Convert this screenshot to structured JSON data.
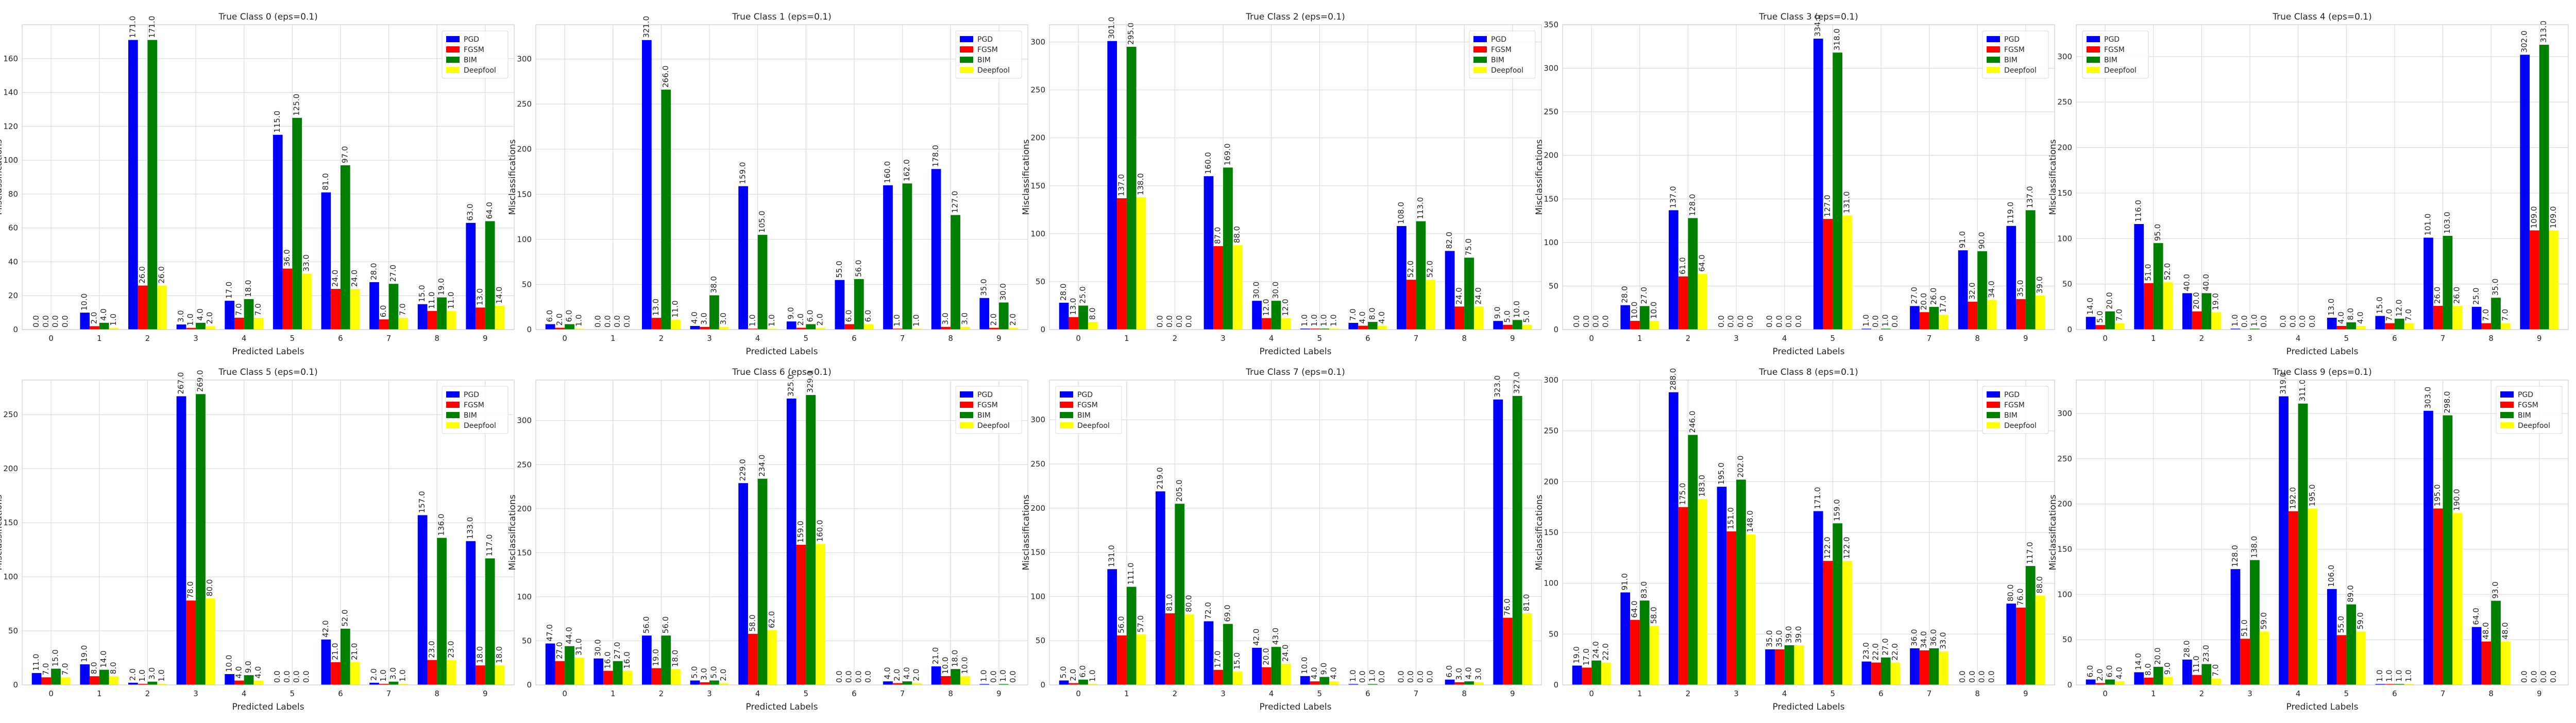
{
  "figure": {
    "legend_names": [
      "PGD",
      "FGSM",
      "BIM",
      "Deepfool"
    ],
    "series_colors": [
      "#0000ff",
      "#ff0000",
      "#008000",
      "#ffff00"
    ],
    "grid": true
  },
  "chart_data": [
    {
      "type": "bar",
      "title": "True Class 0 (eps=0.1)",
      "xlabel": "Predicted Labels",
      "ylabel": "Misclassifications",
      "categories": [
        "0",
        "1",
        "2",
        "3",
        "4",
        "5",
        "6",
        "7",
        "8",
        "9"
      ],
      "ylim": [
        0,
        180
      ],
      "yticks": [
        0,
        20,
        40,
        60,
        80,
        100,
        120,
        140,
        160
      ],
      "legend": "top-right",
      "series": [
        {
          "name": "PGD",
          "values": [
            0,
            10,
            171,
            3,
            17,
            115,
            81,
            28,
            15,
            63
          ]
        },
        {
          "name": "FGSM",
          "values": [
            0,
            2,
            26,
            1,
            7,
            36,
            24,
            6,
            11,
            13
          ]
        },
        {
          "name": "BIM",
          "values": [
            0,
            4,
            171,
            4,
            18,
            125,
            97,
            27,
            19,
            64
          ]
        },
        {
          "name": "Deepfool",
          "values": [
            0,
            1,
            26,
            2,
            7,
            33,
            24,
            7,
            11,
            14
          ]
        }
      ]
    },
    {
      "type": "bar",
      "title": "True Class 1 (eps=0.1)",
      "xlabel": "Predicted Labels",
      "ylabel": "Misclassifications",
      "categories": [
        "0",
        "1",
        "2",
        "3",
        "4",
        "5",
        "6",
        "7",
        "8",
        "9"
      ],
      "ylim": [
        0,
        338
      ],
      "yticks": [
        0,
        50,
        100,
        150,
        200,
        250,
        300
      ],
      "legend": "top-right",
      "series": [
        {
          "name": "PGD",
          "values": [
            6,
            0,
            321,
            4,
            159,
            9,
            55,
            160,
            178,
            35
          ]
        },
        {
          "name": "FGSM",
          "values": [
            2,
            0,
            13,
            3,
            1,
            2,
            6,
            1,
            3,
            2
          ]
        },
        {
          "name": "BIM",
          "values": [
            6,
            0,
            266,
            38,
            105,
            6,
            56,
            162,
            127,
            30
          ]
        },
        {
          "name": "Deepfool",
          "values": [
            1,
            0,
            11,
            3,
            1,
            2,
            6,
            1,
            3,
            2
          ]
        }
      ]
    },
    {
      "type": "bar",
      "title": "True Class 2 (eps=0.1)",
      "xlabel": "Predicted Labels",
      "ylabel": "Misclassifications",
      "categories": [
        "0",
        "1",
        "2",
        "3",
        "4",
        "5",
        "6",
        "7",
        "8",
        "9"
      ],
      "ylim": [
        0,
        318
      ],
      "yticks": [
        0,
        50,
        100,
        150,
        200,
        250,
        300
      ],
      "legend": "top-right",
      "series": [
        {
          "name": "PGD",
          "values": [
            28,
            301,
            0,
            160,
            30,
            1,
            7,
            108,
            82,
            9
          ]
        },
        {
          "name": "FGSM",
          "values": [
            13,
            137,
            0,
            87,
            12,
            1,
            4,
            52,
            24,
            5
          ]
        },
        {
          "name": "BIM",
          "values": [
            25,
            295,
            0,
            169,
            30,
            1,
            8,
            113,
            75,
            10
          ]
        },
        {
          "name": "Deepfool",
          "values": [
            8,
            138,
            0,
            88,
            12,
            1,
            4,
            52,
            24,
            5
          ]
        }
      ]
    },
    {
      "type": "bar",
      "title": "True Class 3 (eps=0.1)",
      "xlabel": "Predicted Labels",
      "ylabel": "Misclassifications",
      "categories": [
        "0",
        "1",
        "2",
        "3",
        "4",
        "5",
        "6",
        "7",
        "8",
        "9"
      ],
      "ylim": [
        0,
        350
      ],
      "yticks": [
        0,
        50,
        100,
        150,
        200,
        250,
        300,
        350
      ],
      "legend": "top-right",
      "series": [
        {
          "name": "PGD",
          "values": [
            0,
            28,
            137,
            0,
            0,
            334,
            1,
            27,
            91,
            119
          ]
        },
        {
          "name": "FGSM",
          "values": [
            0,
            10,
            61,
            0,
            0,
            127,
            0,
            20,
            32,
            35
          ]
        },
        {
          "name": "BIM",
          "values": [
            0,
            27,
            128,
            0,
            0,
            318,
            1,
            26,
            90,
            137
          ]
        },
        {
          "name": "Deepfool",
          "values": [
            0,
            10,
            64,
            0,
            0,
            131,
            0,
            17,
            34,
            39
          ]
        }
      ]
    },
    {
      "type": "bar",
      "title": "True Class 4 (eps=0.1)",
      "xlabel": "Predicted Labels",
      "ylabel": "Misclassifications",
      "categories": [
        "0",
        "1",
        "2",
        "3",
        "4",
        "5",
        "6",
        "7",
        "8",
        "9"
      ],
      "ylim": [
        0,
        335
      ],
      "yticks": [
        0,
        50,
        100,
        150,
        200,
        250,
        300
      ],
      "legend": "top-left",
      "series": [
        {
          "name": "PGD",
          "values": [
            14,
            116,
            40,
            1,
            0,
            13,
            15,
            101,
            25,
            302
          ]
        },
        {
          "name": "FGSM",
          "values": [
            5,
            51,
            20,
            0,
            0,
            4,
            7,
            26,
            7,
            109
          ]
        },
        {
          "name": "BIM",
          "values": [
            20,
            95,
            40,
            1,
            0,
            8,
            12,
            103,
            35,
            313
          ]
        },
        {
          "name": "Deepfool",
          "values": [
            7,
            52,
            19,
            0,
            0,
            4,
            7,
            26,
            7,
            109
          ]
        }
      ]
    },
    {
      "type": "bar",
      "title": "True Class 5 (eps=0.1)",
      "xlabel": "Predicted Labels",
      "ylabel": "Misclassifications",
      "categories": [
        "0",
        "1",
        "2",
        "3",
        "4",
        "5",
        "6",
        "7",
        "8",
        "9"
      ],
      "ylim": [
        0,
        282
      ],
      "yticks": [
        0,
        50,
        100,
        150,
        200,
        250
      ],
      "legend": "top-right",
      "series": [
        {
          "name": "PGD",
          "values": [
            11,
            19,
            2,
            267,
            10,
            0,
            42,
            2,
            157,
            133
          ]
        },
        {
          "name": "FGSM",
          "values": [
            7,
            8,
            1,
            78,
            4,
            0,
            21,
            1,
            23,
            18
          ]
        },
        {
          "name": "BIM",
          "values": [
            15,
            14,
            3,
            269,
            9,
            0,
            52,
            3,
            136,
            117
          ]
        },
        {
          "name": "Deepfool",
          "values": [
            7,
            8,
            1,
            80,
            4,
            0,
            21,
            1,
            23,
            18
          ]
        }
      ]
    },
    {
      "type": "bar",
      "title": "True Class 6 (eps=0.1)",
      "xlabel": "Predicted Labels",
      "ylabel": "Misclassifications",
      "categories": [
        "0",
        "1",
        "2",
        "3",
        "4",
        "5",
        "6",
        "7",
        "8",
        "9"
      ],
      "ylim": [
        0,
        346
      ],
      "yticks": [
        0,
        50,
        100,
        150,
        200,
        250,
        300
      ],
      "legend": "top-right",
      "series": [
        {
          "name": "PGD",
          "values": [
            47,
            30,
            56,
            5,
            229,
            325,
            0,
            4,
            21,
            1
          ]
        },
        {
          "name": "FGSM",
          "values": [
            27,
            16,
            19,
            3,
            58,
            159,
            0,
            2,
            10,
            0
          ]
        },
        {
          "name": "BIM",
          "values": [
            44,
            27,
            56,
            5,
            234,
            329,
            0,
            4,
            18,
            1
          ]
        },
        {
          "name": "Deepfool",
          "values": [
            31,
            16,
            18,
            2,
            62,
            160,
            0,
            2,
            10,
            0
          ]
        }
      ]
    },
    {
      "type": "bar",
      "title": "True Class 7 (eps=0.1)",
      "xlabel": "Predicted Labels",
      "ylabel": "Misclassifications",
      "categories": [
        "0",
        "1",
        "2",
        "3",
        "4",
        "5",
        "6",
        "7",
        "8",
        "9"
      ],
      "ylim": [
        0,
        345
      ],
      "yticks": [
        0,
        50,
        100,
        150,
        200,
        250,
        300
      ],
      "legend": "top-left",
      "series": [
        {
          "name": "PGD",
          "values": [
            5,
            131,
            219,
            72,
            42,
            10,
            1,
            0,
            6,
            323
          ]
        },
        {
          "name": "FGSM",
          "values": [
            2,
            56,
            81,
            17,
            20,
            4,
            0,
            0,
            3,
            76
          ]
        },
        {
          "name": "BIM",
          "values": [
            6,
            111,
            205,
            69,
            43,
            9,
            1,
            0,
            4,
            327
          ]
        },
        {
          "name": "Deepfool",
          "values": [
            1,
            57,
            80,
            15,
            24,
            4,
            0,
            0,
            3,
            81
          ]
        }
      ]
    },
    {
      "type": "bar",
      "title": "True Class 8 (eps=0.1)",
      "xlabel": "Predicted Labels",
      "ylabel": "Misclassifications",
      "categories": [
        "0",
        "1",
        "2",
        "3",
        "4",
        "5",
        "6",
        "7",
        "8",
        "9"
      ],
      "ylim": [
        0,
        300
      ],
      "yticks": [
        0,
        50,
        100,
        150,
        200,
        250,
        300
      ],
      "legend": "top-right",
      "series": [
        {
          "name": "PGD",
          "values": [
            19,
            91,
            288,
            195,
            35,
            171,
            23,
            36,
            0,
            80
          ]
        },
        {
          "name": "FGSM",
          "values": [
            17,
            64,
            175,
            151,
            35,
            122,
            22,
            34,
            0,
            76
          ]
        },
        {
          "name": "BIM",
          "values": [
            24,
            83,
            246,
            202,
            39,
            159,
            27,
            36,
            0,
            117
          ]
        },
        {
          "name": "Deepfool",
          "values": [
            22,
            58,
            183,
            148,
            39,
            122,
            22,
            33,
            0,
            88
          ]
        }
      ]
    },
    {
      "type": "bar",
      "title": "True Class 9 (eps=0.1)",
      "xlabel": "Predicted Labels",
      "ylabel": "Misclassifications",
      "categories": [
        "0",
        "1",
        "2",
        "3",
        "4",
        "5",
        "6",
        "7",
        "8",
        "9"
      ],
      "ylim": [
        0,
        337
      ],
      "yticks": [
        0,
        50,
        100,
        150,
        200,
        250,
        300
      ],
      "legend": "top-right",
      "series": [
        {
          "name": "PGD",
          "values": [
            6,
            14,
            28,
            128,
            319,
            106,
            1,
            303,
            64,
            0
          ]
        },
        {
          "name": "FGSM",
          "values": [
            2,
            8,
            11,
            51,
            192,
            55,
            1,
            195,
            48,
            0
          ]
        },
        {
          "name": "BIM",
          "values": [
            6,
            20,
            23,
            138,
            311,
            89,
            1,
            298,
            93,
            0
          ]
        },
        {
          "name": "Deepfool",
          "values": [
            4,
            9,
            7,
            59,
            195,
            59,
            1,
            190,
            48,
            0
          ]
        }
      ]
    }
  ]
}
